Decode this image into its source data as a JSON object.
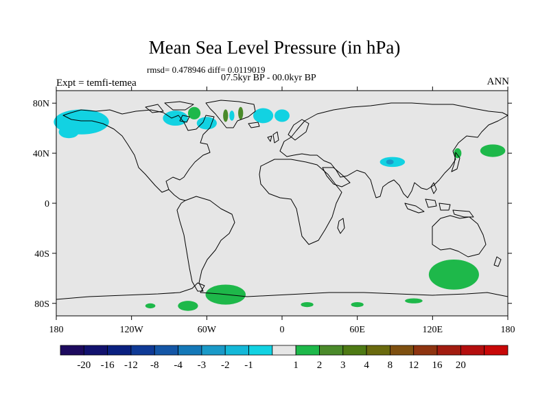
{
  "title": "Mean Sea Level Pressure (in hPa)",
  "stats": "rmsd= 0.478946 diff= 0.0119019",
  "period": "07.5kyr BP - 00.0kyr BP",
  "experiment": "Expt = temfi-temea",
  "season": "ANN",
  "axes": {
    "x_ticks": [
      {
        "value": -180,
        "label": "180"
      },
      {
        "value": -120,
        "label": "120W"
      },
      {
        "value": -60,
        "label": "60W"
      },
      {
        "value": 0,
        "label": "0"
      },
      {
        "value": 60,
        "label": "60E"
      },
      {
        "value": 120,
        "label": "120E"
      },
      {
        "value": 180,
        "label": "180"
      }
    ],
    "y_ticks": [
      {
        "value": 80,
        "label": "80N"
      },
      {
        "value": 40,
        "label": "40N"
      },
      {
        "value": 0,
        "label": "0"
      },
      {
        "value": -40,
        "label": "40S"
      },
      {
        "value": -80,
        "label": "80S"
      }
    ],
    "lon_range": [
      -180,
      180
    ],
    "lat_range": [
      -90,
      90
    ]
  },
  "colorbar": {
    "colors": [
      "#1d0a5e",
      "#12126e",
      "#0a2080",
      "#0f3a96",
      "#1456a6",
      "#1478b8",
      "#1a9ac8",
      "#14b8d8",
      "#12d2e2",
      "#e6e6e6",
      "#1eb84a",
      "#4a8a2a",
      "#4e7a14",
      "#6a6a0e",
      "#7e5010",
      "#8e3410",
      "#a21c10",
      "#b40e0e",
      "#c80808"
    ],
    "labels": [
      "-20",
      "-16",
      "-12",
      "-8",
      "-4",
      "-3",
      "-2",
      "-1",
      "1",
      "2",
      "3",
      "4",
      "8",
      "12",
      "16",
      "20"
    ],
    "label_positions": [
      1,
      2,
      3,
      4,
      5,
      6,
      7,
      8,
      10,
      11,
      12,
      13,
      14,
      15,
      16,
      17
    ]
  },
  "anomaly_regions": [
    {
      "name": "north-pacific-low",
      "lon": -160,
      "lat": 65,
      "rx": 22,
      "ry": 10,
      "color": "#12d2e2"
    },
    {
      "name": "bering-low",
      "lon": -170,
      "lat": 57,
      "rx": 8,
      "ry": 5,
      "color": "#12d2e2"
    },
    {
      "name": "hudson-low",
      "lon": -85,
      "lat": 68,
      "rx": 10,
      "ry": 6,
      "color": "#12d2e2"
    },
    {
      "name": "labrador-low",
      "lon": -60,
      "lat": 64,
      "rx": 8,
      "ry": 5,
      "color": "#12d2e2"
    },
    {
      "name": "baffin-high",
      "lon": -70,
      "lat": 72,
      "rx": 5,
      "ry": 5,
      "color": "#1eb84a"
    },
    {
      "name": "greenland-high",
      "lon": -45,
      "lat": 70,
      "rx": 2,
      "ry": 5,
      "color": "#4a8a2a"
    },
    {
      "name": "greenland-low",
      "lon": -40,
      "lat": 70,
      "rx": 2,
      "ry": 4,
      "color": "#12d2e2"
    },
    {
      "name": "greenland-high-east",
      "lon": -33,
      "lat": 72,
      "rx": 2,
      "ry": 5,
      "color": "#4a8a2a"
    },
    {
      "name": "arctic-low",
      "lon": -15,
      "lat": 70,
      "rx": 8,
      "ry": 6,
      "color": "#12d2e2"
    },
    {
      "name": "norwegian-low",
      "lon": 0,
      "lat": 70,
      "rx": 6,
      "ry": 5,
      "color": "#12d2e2"
    },
    {
      "name": "tibet-low",
      "lon": 88,
      "lat": 33,
      "rx": 10,
      "ry": 4,
      "color": "#12d2e2"
    },
    {
      "name": "tibet-core",
      "lon": 86,
      "lat": 33,
      "rx": 3,
      "ry": 2,
      "color": "#1a9ac8"
    },
    {
      "name": "japan-high",
      "lon": 140,
      "lat": 40,
      "rx": 3,
      "ry": 4,
      "color": "#1eb84a"
    },
    {
      "name": "pacific-high",
      "lon": 168,
      "lat": 42,
      "rx": 10,
      "ry": 5,
      "color": "#1eb84a"
    },
    {
      "name": "tasman-high",
      "lon": 137,
      "lat": -57,
      "rx": 20,
      "ry": 12,
      "color": "#1eb84a"
    },
    {
      "name": "weddell-high",
      "lon": -45,
      "lat": -73,
      "rx": 16,
      "ry": 8,
      "color": "#1eb84a"
    },
    {
      "name": "antarctic-peninsula-high",
      "lon": -75,
      "lat": -82,
      "rx": 8,
      "ry": 4,
      "color": "#1eb84a"
    },
    {
      "name": "antarctic-coast-high",
      "lon": 20,
      "lat": -81,
      "rx": 5,
      "ry": 2,
      "color": "#1eb84a"
    },
    {
      "name": "antarctic-coast-high-2",
      "lon": 60,
      "lat": -81,
      "rx": 5,
      "ry": 2,
      "color": "#1eb84a"
    },
    {
      "name": "antarctic-coast-high-3",
      "lon": 105,
      "lat": -78,
      "rx": 7,
      "ry": 2,
      "color": "#1eb84a"
    },
    {
      "name": "antarctic-coast-high-4",
      "lon": -105,
      "lat": -82,
      "rx": 4,
      "ry": 2,
      "color": "#1eb84a"
    }
  ]
}
